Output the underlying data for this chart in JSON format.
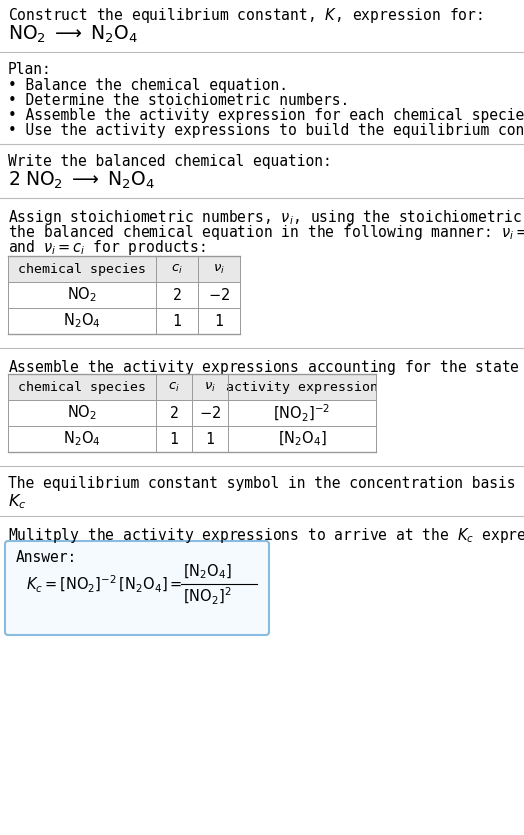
{
  "title_line1": "Construct the equilibrium constant, $K$, expression for:",
  "title_line2": "$\\mathrm{NO_2}\\;\\longrightarrow\\;\\mathrm{N_2O_4}$",
  "plan_header": "Plan:",
  "plan_items": [
    "• Balance the chemical equation.",
    "• Determine the stoichiometric numbers.",
    "• Assemble the activity expression for each chemical species.",
    "• Use the activity expressions to build the equilibrium constant expression."
  ],
  "balanced_eq_header": "Write the balanced chemical equation:",
  "balanced_eq": "$2\\;\\mathrm{NO_2}\\;\\longrightarrow\\;\\mathrm{N_2O_4}$",
  "stoich_header1": "Assign stoichiometric numbers, $\\nu_i$, using the stoichiometric coefficients, $c_i$, from",
  "stoich_header2": "the balanced chemical equation in the following manner: $\\nu_i = -c_i$ for reactants",
  "stoich_header3": "and $\\nu_i = c_i$ for products:",
  "table1_headers": [
    "chemical species",
    "$c_i$",
    "$\\nu_i$"
  ],
  "table1_rows": [
    [
      "$\\mathrm{NO_2}$",
      "2",
      "$-2$"
    ],
    [
      "$\\mathrm{N_2O_4}$",
      "1",
      "1"
    ]
  ],
  "activity_header": "Assemble the activity expressions accounting for the state of matter and $\\nu_i$:",
  "table2_headers": [
    "chemical species",
    "$c_i$",
    "$\\nu_i$",
    "activity expression"
  ],
  "table2_rows": [
    [
      "$\\mathrm{NO_2}$",
      "2",
      "$-2$",
      "$[\\mathrm{NO_2}]^{-2}$"
    ],
    [
      "$\\mathrm{N_2O_4}$",
      "1",
      "1",
      "$[\\mathrm{N_2O_4}]$"
    ]
  ],
  "kc_header": "The equilibrium constant symbol in the concentration basis is:",
  "kc_symbol": "$K_c$",
  "multiply_header": "Mulitply the activity expressions to arrive at the $K_c$ expression:",
  "answer_label": "Answer:",
  "bg_color": "#ffffff",
  "text_color": "#000000",
  "table_header_bg": "#e8e8e8",
  "table_border_color": "#999999",
  "answer_box_border": "#88bbdd",
  "answer_box_bg": "#f5faff",
  "divider_color": "#bbbbbb",
  "font_size": 10.5,
  "mono_font": "DejaVu Sans Mono",
  "serif_font": "DejaVu Serif"
}
